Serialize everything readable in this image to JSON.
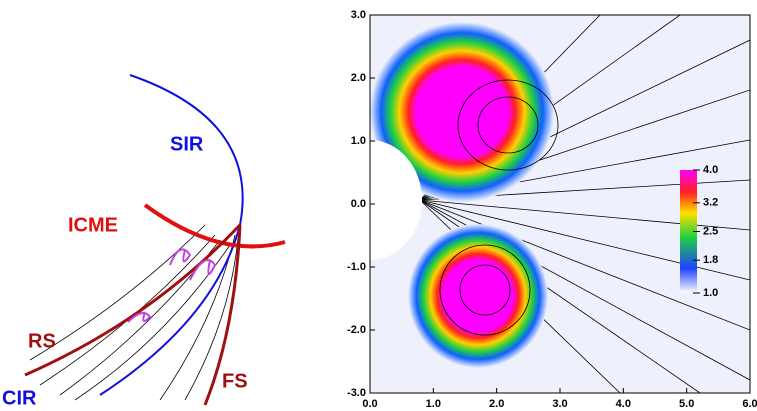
{
  "diagram": {
    "labels": [
      "SIR",
      "ICME",
      "RS",
      "CIR",
      "FS"
    ]
  },
  "chart_data": {
    "type": "heatmap",
    "xlim": [
      0,
      6
    ],
    "ylim": [
      -3,
      3
    ],
    "xticks": [
      {
        "value": 0,
        "label": "0.0"
      },
      {
        "value": 1,
        "label": "1.0"
      },
      {
        "value": 2,
        "label": "2.0"
      },
      {
        "value": 3,
        "label": "3.0"
      },
      {
        "value": 4,
        "label": "4.0"
      },
      {
        "value": 5,
        "label": "5.0"
      },
      {
        "value": 6,
        "label": "6.0"
      }
    ],
    "yticks": [
      {
        "value": -3,
        "label": "-3.0"
      },
      {
        "value": -2,
        "label": "-2.0"
      },
      {
        "value": -1,
        "label": "-1.0"
      },
      {
        "value": 0,
        "label": "0.0"
      },
      {
        "value": 1,
        "label": "1.0"
      },
      {
        "value": 2,
        "label": "2.0"
      },
      {
        "value": 3,
        "label": "3.0"
      }
    ],
    "colorbar": {
      "lim": [
        1,
        4
      ],
      "ticks": [
        {
          "value": 1,
          "label": "1.0"
        },
        1.8,
        2.5,
        3.2,
        {
          "value": 4,
          "label": "4.0"
        }
      ]
    }
  }
}
